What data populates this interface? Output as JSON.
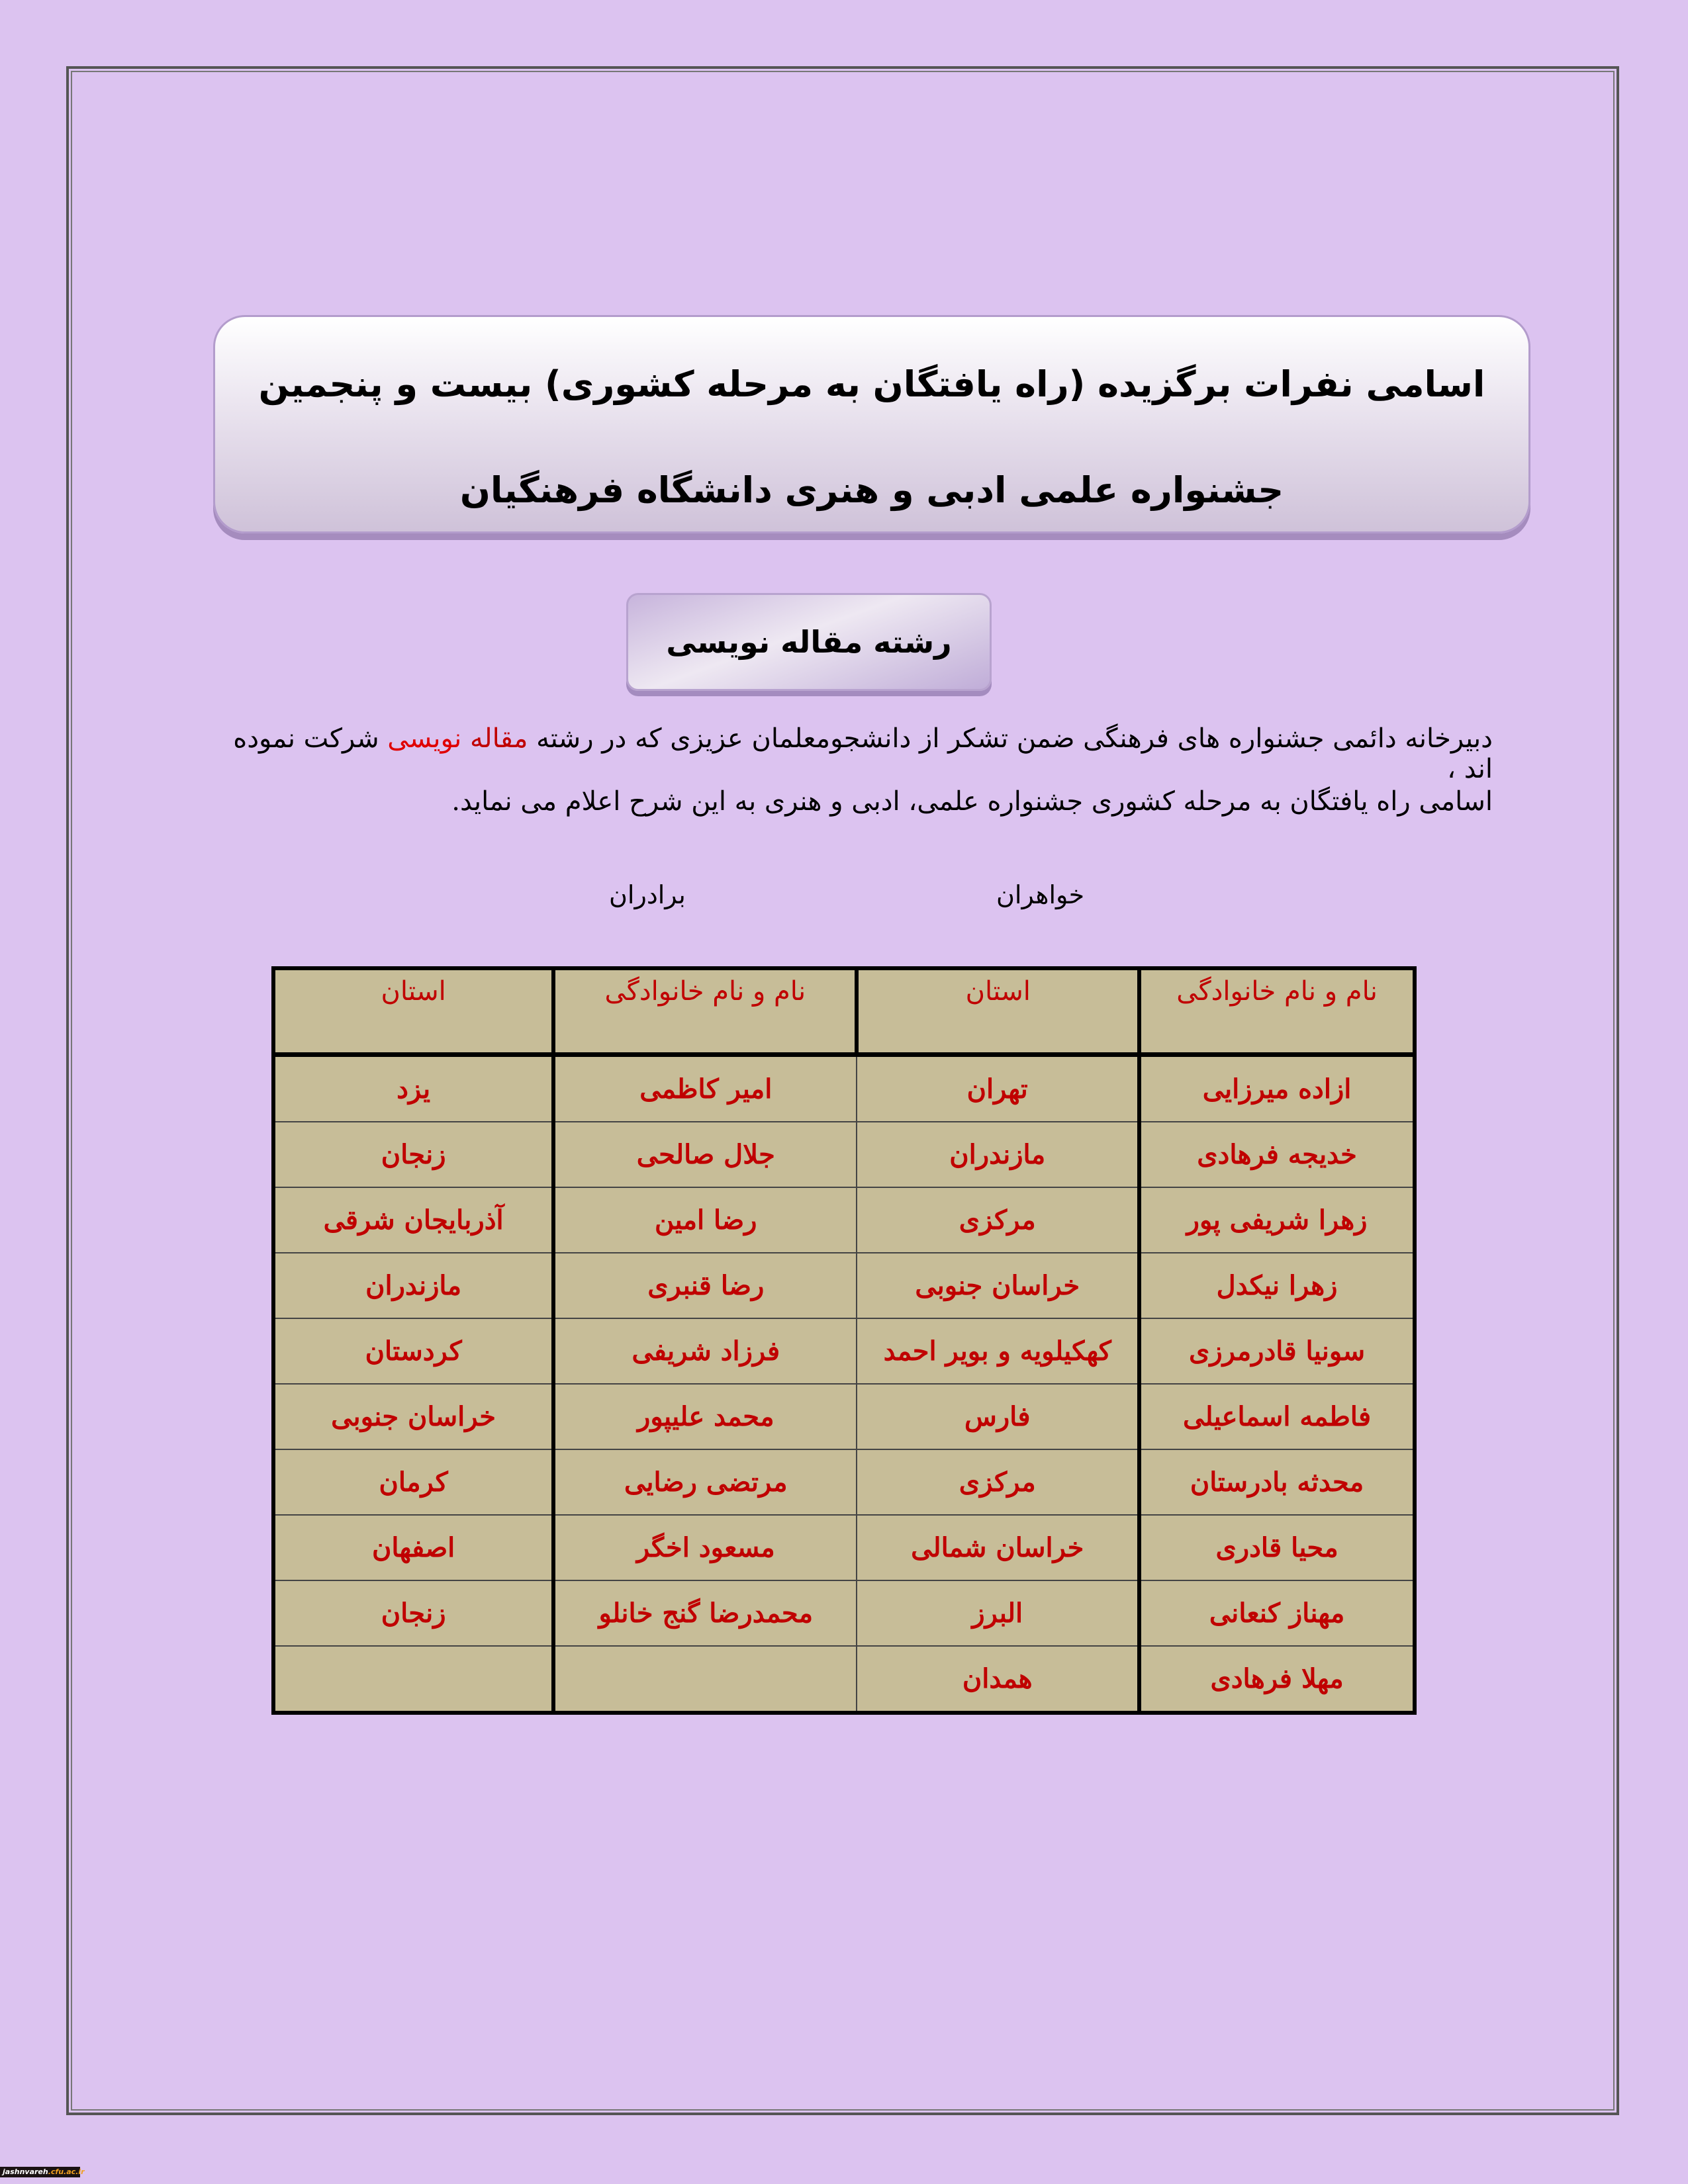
{
  "header": {
    "title_line1": "اسامی نفرات برگزیده (راه یافتگان به  مرحله کشوری) بیست و پنجمین",
    "title_line2": "جشنواره علمی ادبی و هنری دانشگاه فرهنگیان",
    "category": "رشته مقاله نویسی"
  },
  "intro": {
    "line1_before": "دبیرخانه دائمی جشنواره های فرهنگی ضمن تشکر از دانشجومعلمان عزیزی که در رشته ",
    "line1_highlight_a": "مقاله",
    "line1_highlight_b": "نویسی",
    "line1_after": " شرکت نموده اند ،",
    "line2": "اسامی راه یافتگان به مرحله کشوری جشنواره علمی، ادبی و هنری به این شرح اعلام می نماید.",
    "highlight_colors": [
      "#c00000",
      "#e00000"
    ]
  },
  "groups": {
    "sisters": "خواهران",
    "brothers": "برادران"
  },
  "table": {
    "headers": [
      "نام و نام خانوادگی",
      "استان",
      "نام و نام خانوادگی",
      "استان"
    ],
    "rows": [
      [
        "ازاده میرزایی",
        "تهران",
        "امیر کاظمی",
        "یزد"
      ],
      [
        "خدیجه فرهادی",
        "مازندران",
        "جلال صالحی",
        "زنجان"
      ],
      [
        "زهرا شریفی پور",
        "مرکزی",
        "رضا امین",
        "آذربایجان شرقی"
      ],
      [
        "زهرا نیکدل",
        "خراسان جنوبی",
        "رضا قنبری",
        "مازندران"
      ],
      [
        "سونیا قادرمرزی",
        "کهکیلویه و بویر احمد",
        "فرزاد شریفی",
        "کردستان"
      ],
      [
        "فاطمه اسماعیلی",
        "فارس",
        "محمد علیپور",
        "خراسان جنوبی"
      ],
      [
        "محدثه بادرستان",
        "مرکزی",
        "مرتضی رضایی",
        "کرمان"
      ],
      [
        "محیا قادری",
        "خراسان شمالی",
        "مسعود اخگر",
        "اصفهان"
      ],
      [
        "مهناز کنعانی",
        "البرز",
        "محمدرضا گنج خانلو",
        "زنجان"
      ],
      [
        "مهلا فرهادی",
        "همدان",
        "",
        ""
      ]
    ],
    "text_color": "#c00000",
    "cell_background": "#c7bd98"
  },
  "logo": {
    "text_a": "jashnvareh",
    "text_b": ".cfu.ac.ir"
  }
}
